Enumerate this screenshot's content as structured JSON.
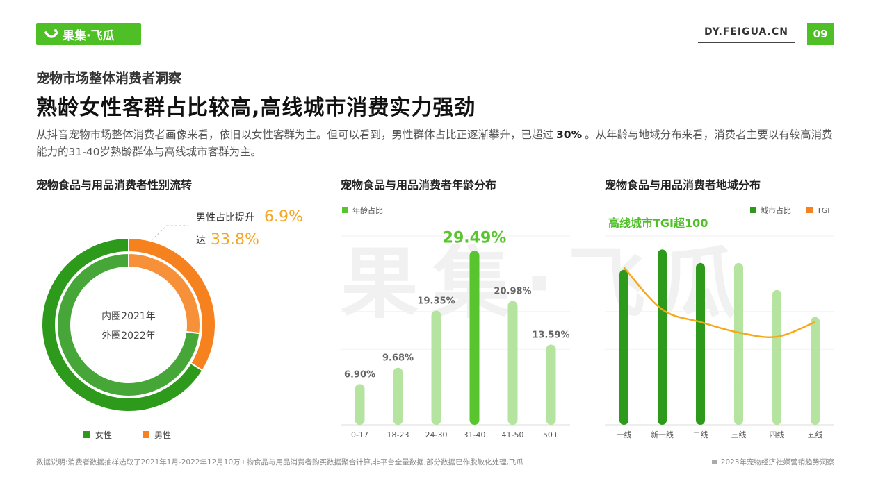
{
  "brand": {
    "name": "果集·飞瓜",
    "site": "DY.FEIGUA.CN",
    "page": "09",
    "watermark": "果集·飞瓜"
  },
  "colors": {
    "brand_green": "#4fbf26",
    "dark_green": "#2e9a1c",
    "light_green": "#b5e3a0",
    "highlight_green": "#58c52e",
    "orange": "#f5821f",
    "tgi_line": "#f5a91a",
    "pct_highlight": "#f5a623"
  },
  "header": {
    "subtitle": "宠物市场整体消费者洞察",
    "title": "熟龄女性客群占比较高,高线城市消费实力强劲",
    "desc_part1": "从抖音宠物市场整体消费者画像来看，依旧以女性客群为主。但可以看到，男性群体占比正逐渐攀升，已超过",
    "desc_bold": "30%",
    "desc_part2": "。从年龄与地域分布来看，消费者主要以有较高消费能力的31-40岁熟龄群体与高线城市客群为主。"
  },
  "panels": {
    "gender_title": "宠物食品与用品消费者性别流转",
    "age_title": "宠物食品与用品消费者年龄分布",
    "region_title": "宠物食品与用品消费者地域分布"
  },
  "footer": {
    "note": "数据说明:消费者数据抽样选取了2021年1月-2022年12月10万+物食品与用品消费者购买数据聚合计算,非平台全量数据,部分数据已作脱敏化处理,飞瓜",
    "report": "2023年宠物经济社媒营销趋势洞察"
  },
  "chart_data": [
    {
      "type": "pie",
      "title": "宠物食品与用品消费者性别流转",
      "center_line1": "内圈2021年",
      "center_line2": "外圈2022年",
      "annotation_line1": "男性占比提升",
      "annotation_value1": "6.9%",
      "annotation_line2": "达",
      "annotation_value2": "33.8%",
      "legend": [
        "女性",
        "男性"
      ],
      "series": [
        {
          "name": "外圈2022年",
          "values": [
            66.2,
            33.8
          ]
        },
        {
          "name": "内圈2021年",
          "values": [
            73.1,
            26.9
          ]
        }
      ],
      "colors": [
        "#2e9a1c",
        "#f5821f"
      ]
    },
    {
      "type": "bar",
      "title": "宠物食品与用品消费者年龄分布",
      "legend": [
        "年龄占比"
      ],
      "categories": [
        "0-17",
        "18-23",
        "24-30",
        "31-40",
        "41-50",
        "50+"
      ],
      "values": [
        6.9,
        9.68,
        19.35,
        29.49,
        20.98,
        13.59
      ],
      "labels": [
        "6.90%",
        "9.68%",
        "19.35%",
        "29.49%",
        "20.98%",
        "13.59%"
      ],
      "highlight_index": 3,
      "ylim": [
        0,
        32
      ]
    },
    {
      "type": "bar",
      "title": "宠物食品与用品消费者地域分布",
      "legend": [
        "城市占比",
        "TGI"
      ],
      "annotation": "高线城市TGI超100",
      "categories": [
        "一线",
        "新一线",
        "二线",
        "三线",
        "四线",
        "五线"
      ],
      "values": [
        23,
        26,
        24,
        24,
        20,
        16
      ],
      "tgi": [
        125,
        105,
        99,
        94,
        92,
        99
      ],
      "dark_count": 3,
      "ylim": [
        0,
        28
      ],
      "tgi_lim": [
        50,
        140
      ]
    }
  ]
}
